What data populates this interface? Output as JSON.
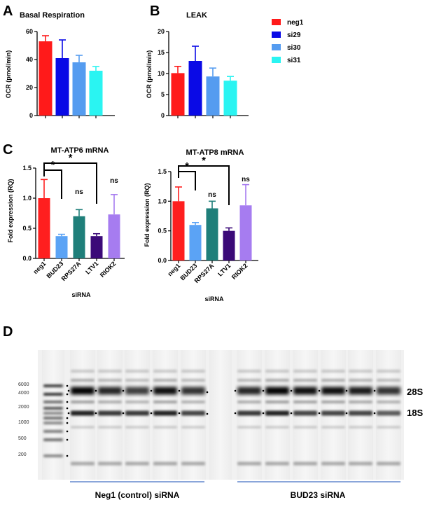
{
  "panel_labels": {
    "A": "A",
    "B": "B",
    "C": "C",
    "D": "D"
  },
  "colors": {
    "neg1": "#ff1a1a",
    "si29": "#0a0ae6",
    "si30": "#559cf0",
    "si31": "#2af4f2",
    "c_neg1": "#ff1f1f",
    "c_bud23": "#5ba3f5",
    "c_rps27a": "#1f7f7a",
    "c_ltv1": "#3b0a78",
    "c_riok2": "#a67cf0"
  },
  "legend": {
    "items": [
      "neg1",
      "si29",
      "si30",
      "si31"
    ]
  },
  "chart_data": [
    {
      "type": "bar",
      "title": "Basal Respiration",
      "ylabel": "OCR (pmol/min)",
      "ylim": [
        0,
        60
      ],
      "yticks": [
        "0",
        "20",
        "40",
        "60"
      ],
      "series": [
        {
          "name": "neg1",
          "value": 53,
          "error": 4
        },
        {
          "name": "si29",
          "value": 41,
          "error": 13
        },
        {
          "name": "si30",
          "value": 38,
          "error": 5
        },
        {
          "name": "si31",
          "value": 32,
          "error": 3
        }
      ]
    },
    {
      "type": "bar",
      "title": "LEAK",
      "ylabel": "OCR (pmol/min)",
      "ylim": [
        0,
        20
      ],
      "yticks": [
        "0",
        "5",
        "10",
        "15",
        "20"
      ],
      "series": [
        {
          "name": "neg1",
          "value": 10.1,
          "error": 1.6
        },
        {
          "name": "si29",
          "value": 13.0,
          "error": 3.5
        },
        {
          "name": "si30",
          "value": 9.3,
          "error": 2.0
        },
        {
          "name": "si31",
          "value": 8.3,
          "error": 1.0
        }
      ]
    },
    {
      "type": "bar",
      "title": "MT-ATP6 mRNA",
      "xlabel": "siRNA",
      "ylabel": "Fold expression (RQ)",
      "ylim": [
        0,
        1.5
      ],
      "yticks": [
        "0.0",
        "0.5",
        "1.0",
        "1.5"
      ],
      "categories": [
        "neg1",
        "BUD23",
        "RPS27A",
        "LTV1",
        "RIOK2"
      ],
      "values": [
        1.0,
        0.37,
        0.7,
        0.37,
        0.73
      ],
      "errors": [
        0.31,
        0.03,
        0.11,
        0.04,
        0.33
      ],
      "annotations": [
        "*",
        "*",
        "ns",
        "ns"
      ]
    },
    {
      "type": "bar",
      "title": "MT-ATP8 mRNA",
      "xlabel": "siRNA",
      "ylabel": "Fold expression (RQ)",
      "ylim": [
        0,
        1.5
      ],
      "yticks": [
        "0.0",
        "0.5",
        "1.0",
        "1.5"
      ],
      "categories": [
        "neg1",
        "BUD23",
        "RPS27A",
        "LTV1",
        "RIOK2"
      ],
      "values": [
        1.0,
        0.6,
        0.88,
        0.5,
        0.93
      ],
      "errors": [
        0.24,
        0.04,
        0.12,
        0.05,
        0.35
      ],
      "annotations": [
        "*",
        "*",
        "ns",
        "ns"
      ]
    }
  ],
  "gel": {
    "ladder_labels": [
      "6000",
      "4000",
      "2000",
      "1000",
      "500",
      "200"
    ],
    "band_labels": [
      "28S",
      "18S"
    ],
    "group_labels": [
      "Neg1 (control) siRNA",
      "BUD23 siRNA"
    ]
  }
}
